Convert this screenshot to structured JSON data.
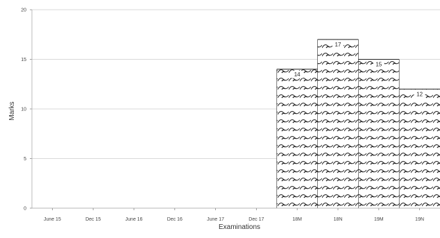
{
  "chart_data": {
    "type": "bar",
    "xlabel": "Examinations",
    "ylabel": "Marks",
    "ylim": [
      0,
      20
    ],
    "yticks": [
      0,
      5,
      10,
      15,
      20
    ],
    "grid": true,
    "categories": [
      "June 15",
      "Dec 15",
      "June 16",
      "Dec 16",
      "June 17",
      "Dec 17",
      "18M",
      "18N",
      "19M",
      "19N"
    ],
    "values": [
      null,
      null,
      null,
      null,
      null,
      null,
      14,
      17,
      15,
      12
    ],
    "value_labels": [
      "",
      "",
      "",
      "",
      "",
      "",
      "14",
      "17",
      "15",
      "12"
    ],
    "bar_color": "#222222",
    "bar_fill": "wave-pattern"
  }
}
